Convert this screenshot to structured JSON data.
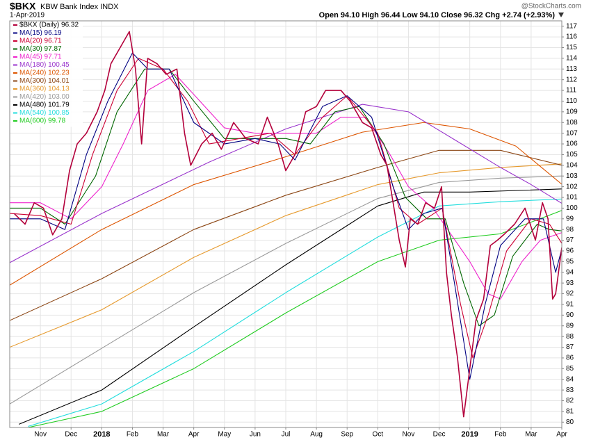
{
  "chart_data": {
    "type": "line",
    "title": "$BKX",
    "subtitle": "KBW Bank Index INDX",
    "date": "1-Apr-2019",
    "quote": "Open 94.10 High 96.44 Low 94.10 Close 96.32 Chg +2.74 (+2.93%)",
    "source": "@StockCharts.com",
    "grid": true,
    "legend": "top-left",
    "xlim": [
      0,
      18
    ],
    "ylim": [
      79.5,
      117.5
    ],
    "xticks": [
      {
        "value": 1,
        "label": "Nov"
      },
      {
        "value": 2,
        "label": "Dec"
      },
      {
        "value": 3,
        "label": "2018"
      },
      {
        "value": 4,
        "label": "Feb"
      },
      {
        "value": 5,
        "label": "Mar"
      },
      {
        "value": 6,
        "label": "Apr"
      },
      {
        "value": 7,
        "label": "May"
      },
      {
        "value": 8,
        "label": "Jun"
      },
      {
        "value": 9,
        "label": "Jul"
      },
      {
        "value": 10,
        "label": "Aug"
      },
      {
        "value": 11,
        "label": "Sep"
      },
      {
        "value": 12,
        "label": "Oct"
      },
      {
        "value": 13,
        "label": "Nov"
      },
      {
        "value": 14,
        "label": "Dec"
      },
      {
        "value": 15,
        "label": "2019"
      },
      {
        "value": 16,
        "label": "Feb"
      },
      {
        "value": 17,
        "label": "Mar"
      },
      {
        "value": 18,
        "label": "Apr"
      }
    ],
    "yticks": [
      80,
      81,
      82,
      83,
      84,
      85,
      86,
      87,
      88,
      89,
      90,
      91,
      92,
      93,
      94,
      95,
      96,
      97,
      98,
      99,
      100,
      101,
      102,
      103,
      104,
      105,
      106,
      107,
      108,
      109,
      110,
      111,
      112,
      113,
      114,
      115,
      116,
      117
    ],
    "series": [
      {
        "name": "$BKX (Daily) 96.32",
        "color": "#b3003b",
        "x": [
          0.14,
          0.5,
          0.8,
          1.1,
          1.4,
          1.7,
          1.95,
          2.2,
          2.5,
          2.85,
          3.1,
          3.3,
          3.6,
          3.9,
          4.1,
          4.3,
          4.5,
          4.8,
          5.1,
          5.45,
          5.7,
          5.9,
          6.26,
          6.6,
          6.9,
          7.3,
          7.7,
          8.1,
          8.4,
          8.75,
          9.0,
          9.3,
          9.65,
          10.0,
          10.3,
          10.8,
          11.1,
          11.5,
          11.8,
          12.1,
          12.3,
          12.5,
          12.7,
          12.9,
          13.06,
          13.3,
          13.56,
          13.85,
          14.08,
          14.24,
          14.4,
          14.6,
          14.8,
          15.0,
          15.2,
          15.45,
          15.67,
          15.9,
          16.1,
          16.46,
          16.8,
          17.14,
          17.37,
          17.55,
          17.7,
          17.8,
          18
        ],
        "values": [
          99.5,
          98.5,
          100.5,
          100,
          97.5,
          99,
          103.5,
          106,
          107,
          109,
          111,
          113.5,
          115,
          116.5,
          113,
          106,
          114,
          113.5,
          112.5,
          113,
          107,
          104,
          106,
          107,
          105.5,
          108,
          106.5,
          106,
          108.5,
          106,
          103.5,
          105,
          109,
          109.5,
          111,
          111,
          110,
          108,
          107.5,
          105,
          104,
          100.5,
          97,
          94.5,
          99,
          98.5,
          100.5,
          100,
          102,
          94,
          90,
          86,
          80.5,
          85,
          89.5,
          91.5,
          96.5,
          97,
          97.5,
          98.5,
          100,
          97,
          100.5,
          99,
          91.5,
          92,
          96.32
        ]
      },
      {
        "name": "MA(15) 96.19",
        "color": "#000080",
        "x": [
          0,
          1,
          1.8,
          2.5,
          3.2,
          4,
          4.5,
          5.2,
          6,
          7,
          8,
          8.8,
          9.3,
          10.2,
          11,
          11.8,
          12.5,
          13,
          13.5,
          14.1,
          14.5,
          15,
          15.5,
          16,
          16.8,
          17.4,
          17.8,
          18
        ],
        "values": [
          99,
          99,
          98,
          105,
          110,
          114.5,
          113,
          113,
          108,
          106,
          106.5,
          106,
          104.5,
          109.5,
          110.5,
          108.5,
          102,
          98,
          99.5,
          100,
          93,
          84,
          91,
          96.5,
          99,
          99,
          94,
          96.19
        ]
      },
      {
        "name": "MA(20) 96.71",
        "color": "#cc0033",
        "x": [
          0,
          1,
          2,
          2.7,
          3.5,
          4.2,
          5,
          5.8,
          6.5,
          7.5,
          8.5,
          9.3,
          10.2,
          11,
          12,
          12.7,
          13.3,
          14.1,
          14.7,
          15.1,
          15.6,
          16.2,
          17,
          17.6,
          18
        ],
        "values": [
          99.5,
          99.3,
          98.5,
          105,
          111,
          114,
          113,
          110,
          106,
          106.5,
          107,
          105,
          108.5,
          110.5,
          107,
          100,
          98.5,
          100,
          91,
          86,
          90,
          96,
          99,
          98.5,
          96.71
        ]
      },
      {
        "name": "MA(30) 97.87",
        "color": "#006600",
        "x": [
          0,
          1,
          1.8,
          2.8,
          3.5,
          4.4,
          5.2,
          6,
          7,
          8,
          9,
          9.8,
          10.6,
          11.4,
          12.2,
          12.9,
          13.6,
          14.2,
          14.8,
          15.3,
          15.8,
          16.4,
          17.2,
          17.6,
          18
        ],
        "values": [
          100,
          100,
          98.5,
          103,
          109,
          113,
          113,
          110,
          106.5,
          106.5,
          106.5,
          106,
          109,
          109.5,
          106,
          101,
          99,
          99,
          93,
          89,
          90,
          95.5,
          98.5,
          98,
          97.87
        ]
      },
      {
        "name": "MA(45) 97.71",
        "color": "#ee22cc",
        "x": [
          0,
          1,
          2,
          3,
          3.7,
          4.5,
          5.4,
          6.2,
          7,
          8,
          9,
          10,
          10.8,
          11.6,
          12.4,
          13,
          13.8,
          14.4,
          15,
          15.6,
          16,
          16.7,
          17.3,
          18
        ],
        "values": [
          100.5,
          100.5,
          99,
          102,
          106,
          111,
          112.5,
          110,
          107.5,
          107,
          107,
          107,
          108.5,
          108.5,
          105,
          102,
          100,
          97.5,
          95,
          92,
          91.5,
          95,
          97,
          97.71
        ]
      },
      {
        "name": "MA(180) 100.45",
        "color": "#9933cc",
        "x": [
          0,
          3,
          6.5,
          9,
          11.5,
          13,
          14.5,
          16,
          17,
          18
        ],
        "values": [
          94.9,
          99.5,
          104.3,
          107.4,
          109.7,
          109,
          106.4,
          103.8,
          102.2,
          100.45
        ]
      },
      {
        "name": "MA(240) 102.23",
        "color": "#dd5500",
        "x": [
          0,
          3,
          6,
          9,
          11.5,
          13.5,
          15,
          16.5,
          18
        ],
        "values": [
          92.8,
          98,
          102.2,
          104.8,
          107.1,
          108,
          107.4,
          105.8,
          102.23
        ]
      },
      {
        "name": "MA(300) 104.01",
        "color": "#8b4513",
        "x": [
          0,
          3,
          6,
          9,
          12,
          14,
          16,
          18
        ],
        "values": [
          89.5,
          93.4,
          98,
          101.2,
          103.8,
          105.4,
          105.4,
          104.01
        ]
      },
      {
        "name": "MA(360) 104.13",
        "color": "#e69a2e",
        "x": [
          0,
          3,
          6,
          9,
          12,
          14,
          16,
          18
        ],
        "values": [
          87,
          90.5,
          95.4,
          99.3,
          102.2,
          103.3,
          103.8,
          104.13
        ]
      },
      {
        "name": "MA(420) 103.00",
        "color": "#999999",
        "x": [
          0,
          3,
          6,
          9,
          12,
          14,
          16,
          18
        ],
        "values": [
          81.7,
          86.9,
          92.1,
          96.7,
          100.9,
          102.4,
          102.8,
          103
        ]
      },
      {
        "name": "MA(480) 101.79",
        "color": "#000000",
        "x": [
          0.3,
          3,
          6,
          9,
          12,
          13.5,
          15,
          18
        ],
        "values": [
          79.8,
          83,
          88.9,
          94.7,
          100.2,
          101.5,
          101.5,
          101.79
        ]
      },
      {
        "name": "MA(540) 100.85",
        "color": "#22dddd",
        "x": [
          0.6,
          3,
          6,
          9,
          12,
          14,
          16,
          18
        ],
        "values": [
          79.6,
          81.7,
          86.6,
          92.1,
          97.3,
          100.2,
          100.6,
          100.85
        ]
      },
      {
        "name": "MA(600) 99.78",
        "color": "#22cc22",
        "x": [
          0.6,
          3,
          6,
          9,
          12,
          14,
          16,
          18
        ],
        "values": [
          79.5,
          81,
          85,
          90.2,
          95,
          97,
          97.6,
          99.78
        ]
      }
    ]
  }
}
